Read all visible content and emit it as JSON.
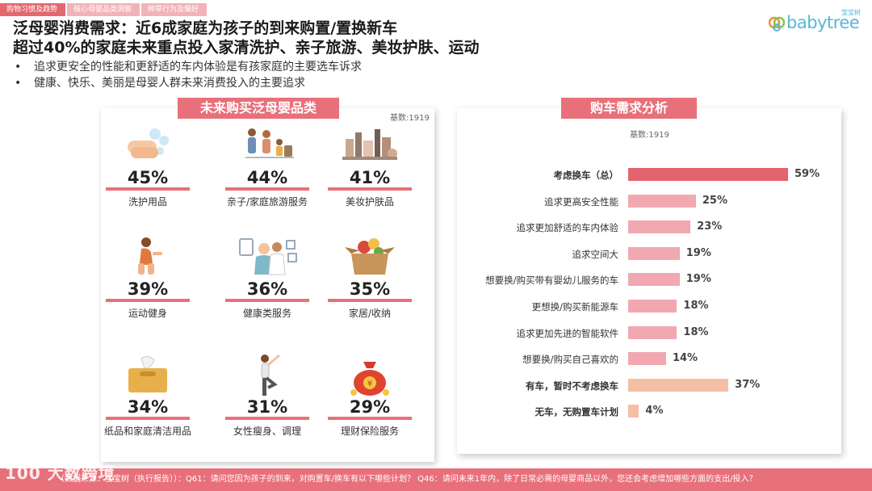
{
  "nav": {
    "tabs": [
      {
        "label": "购物习惯及趋势",
        "active": true
      },
      {
        "label": "核心母婴品类洞察",
        "active": false
      },
      {
        "label": "种草行为及偏好",
        "active": false
      }
    ]
  },
  "logo": {
    "text": "babytree",
    "cn": "宝宝树"
  },
  "header": {
    "title1": "泛母婴消费需求：近6成家庭为孩子的到来购置/置换新车",
    "title2": "超过40%的家庭未来重点投入家清洗护、亲子旅游、美妆护肤、运动",
    "bullets": [
      "追求更安全的性能和更舒适的车内体验是有孩家庭的主要选车诉求",
      "健康、快乐、美丽是母婴人群未来消费投入的主要追求"
    ]
  },
  "left_panel": {
    "title": "未来购买泛母婴品类",
    "base": "基数:1919",
    "items": [
      {
        "pct": "45%",
        "label": "洗护用品",
        "icon": "hand-washing-icon"
      },
      {
        "pct": "44%",
        "label": "亲子/家庭旅游服务",
        "icon": "family-travel-icon"
      },
      {
        "pct": "41%",
        "label": "美妆护肤品",
        "icon": "cosmetics-icon"
      },
      {
        "pct": "39%",
        "label": "运动健身",
        "icon": "fitness-icon"
      },
      {
        "pct": "36%",
        "label": "健康类服务",
        "icon": "doctor-icon"
      },
      {
        "pct": "35%",
        "label": "家居/收纳",
        "icon": "storage-box-icon"
      },
      {
        "pct": "34%",
        "label": "纸品和家庭清洁用品",
        "icon": "tissue-box-icon"
      },
      {
        "pct": "31%",
        "label": "女性瘦身、调理",
        "icon": "yoga-icon"
      },
      {
        "pct": "29%",
        "label": "理财保险服务",
        "icon": "money-bag-icon"
      }
    ]
  },
  "right_panel": {
    "title": "购车需求分析",
    "base": "基数:1919"
  },
  "chart_data": {
    "type": "bar",
    "orientation": "horizontal",
    "categories": [
      "考虑换车（总）",
      "追求更高安全性能",
      "追求更加舒适的车内体验",
      "追求空间大",
      "想要换/购买带有婴幼儿服务的车",
      "更想换/购买新能源车",
      "追求更加先进的智能软件",
      "想要换/购买自己喜欢的",
      "有车，暂时不考虑换车",
      "无车，无购置车计划"
    ],
    "values": [
      59,
      25,
      23,
      19,
      19,
      18,
      18,
      14,
      37,
      4
    ],
    "value_labels": [
      "59%",
      "25%",
      "23%",
      "19%",
      "19%",
      "18%",
      "18%",
      "14%",
      "37%",
      "4%"
    ],
    "bold": [
      true,
      false,
      false,
      false,
      false,
      false,
      false,
      false,
      true,
      true
    ],
    "colors": [
      "#e4636f",
      "#f1a8b1",
      "#f1a8b1",
      "#f1a8b1",
      "#f1a8b1",
      "#f1a8b1",
      "#f1a8b1",
      "#f1a8b1",
      "#f5bfa6",
      "#f5bfa6"
    ],
    "xlim": [
      0,
      59
    ]
  },
  "footer": {
    "watermark": "100 大数跨境",
    "text": "（数据来源：宝宝树（执行报告））：Q61：请问您因为孩子的到来，对购置车/换车有以下哪些计划？ Q46：请问未来1年内，除了日常必需的母婴商品以外，您还会考虑增加哪些方面的支出/投入？"
  }
}
